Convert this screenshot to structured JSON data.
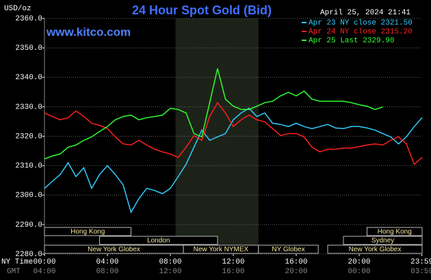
{
  "chart_data": {
    "type": "line",
    "title": "24 Hour Spot Gold (Bid)",
    "timestamp": "April 25, 2024 21:41",
    "source": "www.kitco.com",
    "y_label": "USD/oz",
    "x_label": "NY Time",
    "x2_label": "GMT",
    "x": [
      0,
      0.5,
      1,
      1.5,
      2,
      2.5,
      3,
      3.5,
      4,
      4.5,
      5,
      5.5,
      6,
      6.5,
      7,
      7.5,
      8,
      8.5,
      9,
      9.5,
      10,
      10.5,
      11,
      11.5,
      12,
      12.5,
      13,
      13.5,
      14,
      14.5,
      15,
      15.5,
      16,
      16.5,
      17,
      17.5,
      18,
      18.5,
      19,
      19.5,
      20,
      20.5,
      21,
      21.5,
      22,
      22.5,
      23,
      23.5,
      24
    ],
    "xlim": [
      0,
      24
    ],
    "xticks": [
      {
        "value": 0,
        "label": "00:00"
      },
      {
        "value": 4,
        "label": "04:00"
      },
      {
        "value": 8,
        "label": "08:00"
      },
      {
        "value": 12,
        "label": "12:00"
      },
      {
        "value": 16,
        "label": "16:00"
      },
      {
        "value": 20,
        "label": "20:00"
      },
      {
        "value": 23.983,
        "label": "23:59"
      }
    ],
    "x2ticks": [
      {
        "value": 0,
        "label": "04:00"
      },
      {
        "value": 4,
        "label": "08:00"
      },
      {
        "value": 8,
        "label": "12:00"
      },
      {
        "value": 12,
        "label": "16:00"
      },
      {
        "value": 16,
        "label": "20:00"
      },
      {
        "value": 20,
        "label": "00:00"
      },
      {
        "value": 23.983,
        "label": "03:59"
      }
    ],
    "ylim": [
      2280,
      2360
    ],
    "yticks": [
      {
        "value": 2280,
        "label": "2280.0"
      },
      {
        "value": 2290,
        "label": "2290.0"
      },
      {
        "value": 2300,
        "label": "2300.0"
      },
      {
        "value": 2310,
        "label": "2310.0"
      },
      {
        "value": 2320,
        "label": "2320.0"
      },
      {
        "value": 2330,
        "label": "2330.0"
      },
      {
        "value": 2340,
        "label": "2340.0"
      },
      {
        "value": 2350,
        "label": "2350.0"
      },
      {
        "value": 2360,
        "label": "2360.0"
      }
    ],
    "grid": true,
    "highlight_range": [
      8.33,
      13.6
    ],
    "highlight_color": "#1c2218",
    "series": [
      {
        "name": "Apr 23 NY close 2321.50",
        "color": "#33ccff",
        "values": [
          2302.3,
          2304.7,
          2307,
          2311,
          2306.3,
          2309.3,
          2302.3,
          2307,
          2310,
          2307,
          2303.5,
          2294.2,
          2298.8,
          2302.3,
          2301.6,
          2300.5,
          2302.3,
          2306.3,
          2310.5,
          2316.3,
          2322.1,
          2318.6,
          2319.8,
          2320.9,
          2325.6,
          2327.9,
          2329.5,
          2326.7,
          2327.9,
          2324.4,
          2324,
          2323.3,
          2324.4,
          2323.3,
          2322.6,
          2323.3,
          2324,
          2322.8,
          2322.6,
          2323.3,
          2323.3,
          2322.8,
          2322.1,
          2320.9,
          2319.8,
          2317.4,
          2319.8,
          2323.3,
          2326.3
        ]
      },
      {
        "name": "Apr 24 NY close 2315.20",
        "color": "#ff2020",
        "values": [
          2327.9,
          2326.7,
          2325.6,
          2326.3,
          2328.6,
          2326.7,
          2324.4,
          2323.7,
          2322.6,
          2319.8,
          2317.4,
          2317,
          2318.6,
          2317,
          2315.6,
          2314.7,
          2314,
          2312.8,
          2316.3,
          2320.2,
          2318.6,
          2326.7,
          2331.4,
          2327.9,
          2323.3,
          2325.6,
          2327.2,
          2325.6,
          2324.9,
          2322.6,
          2320.2,
          2320.9,
          2320.9,
          2319.8,
          2316.3,
          2314.7,
          2315.6,
          2315.6,
          2316,
          2316,
          2316.5,
          2317,
          2317.4,
          2317,
          2318.6,
          2319.8,
          2317.4,
          2310.5,
          2312.8
        ]
      },
      {
        "name": "Apr 25 Last 2329.90",
        "color": "#33ff33",
        "values": [
          2312.3,
          2313.3,
          2314,
          2316.3,
          2317,
          2318.6,
          2319.8,
          2321.6,
          2323.3,
          2325.6,
          2326.7,
          2327.2,
          2325.6,
          2326.3,
          2326.7,
          2327.2,
          2329.5,
          2329.1,
          2327.9,
          2320.9,
          2319.8,
          2331.4,
          2343,
          2332.6,
          2330.2,
          2329.1,
          2329.1,
          2330.2,
          2331.4,
          2331.9,
          2333.7,
          2334.9,
          2333.7,
          2335.3,
          2332.6,
          2331.9,
          2331.9,
          2331.9,
          2331.9,
          2331.4,
          2330.7,
          2330.2,
          2329.1,
          2329.9,
          null,
          null,
          null,
          null,
          null
        ]
      }
    ],
    "session_rows": [
      [
        {
          "label": "Hong Kong",
          "start": 0,
          "end": 5.5
        },
        {
          "label": "Hong Kong",
          "start": 20.5,
          "end": 24
        }
      ],
      [
        {
          "label": "London",
          "start": 3.5,
          "end": 11
        },
        {
          "label": "Sydney",
          "start": 19,
          "end": 24
        }
      ],
      [
        {
          "label": "New York Globex",
          "start": 0,
          "end": 8.83
        },
        {
          "label": "New York NYMEX",
          "start": 8.83,
          "end": 13.6
        },
        {
          "label": "NY Globex",
          "start": 13.6,
          "end": 17.4
        },
        {
          "label": "New York Globex",
          "start": 18,
          "end": 24
        }
      ]
    ]
  }
}
